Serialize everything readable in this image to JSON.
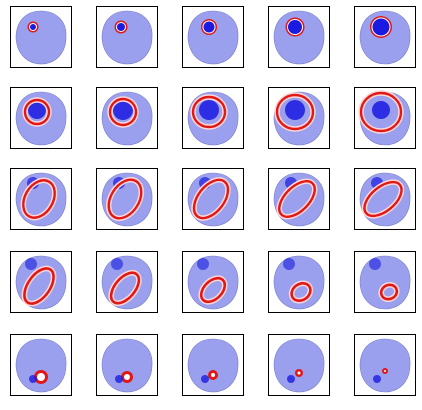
{
  "figure": {
    "rows": 5,
    "columns": 5,
    "panel_count": 25,
    "colors": {
      "background_field": "#9aa0ee",
      "positive": "#e01818",
      "positive_light": "#ffd0d0",
      "negative": "#1a1ae0",
      "frame": "#000000"
    },
    "description_visible_text": []
  }
}
